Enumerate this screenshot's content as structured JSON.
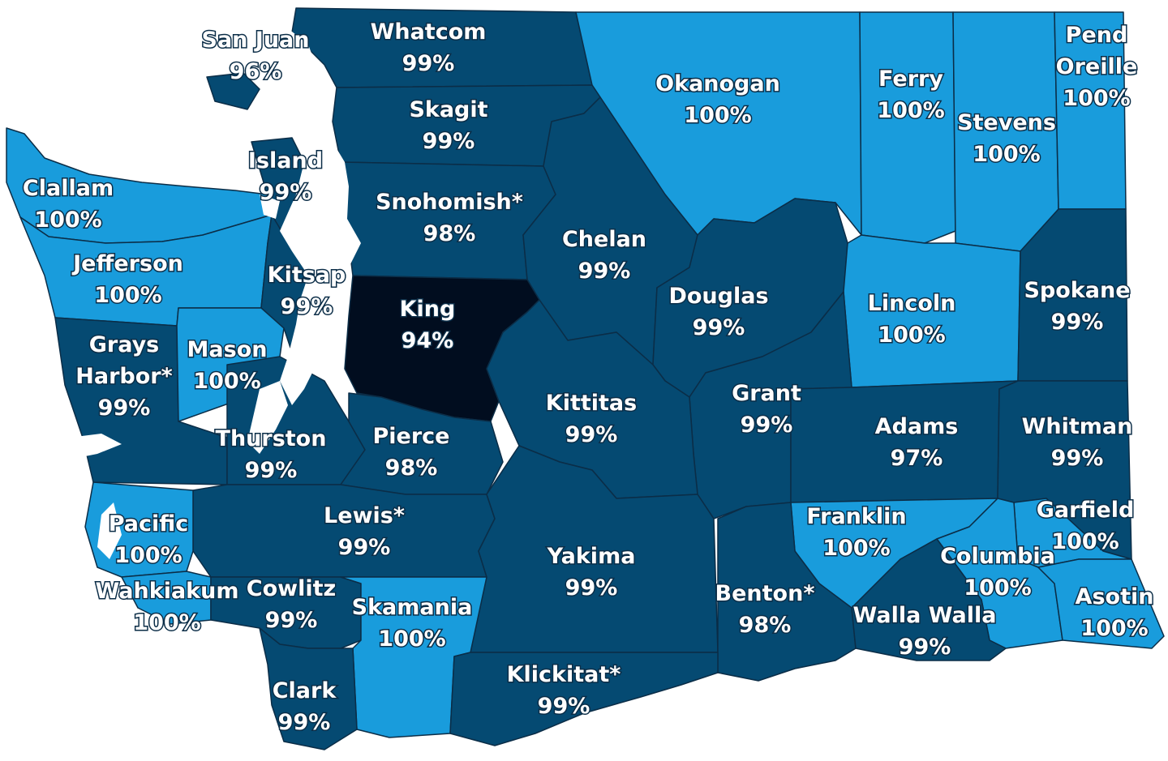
{
  "colors": {
    "light": "#199cdc",
    "dark": "#054a72",
    "darkest": "#010d1f",
    "border": "#0b2d47"
  },
  "counties": {
    "san_juan": {
      "lines": [
        "San Juan",
        "96%"
      ],
      "shade": "dark"
    },
    "whatcom": {
      "lines": [
        "Whatcom",
        "99%"
      ],
      "shade": "dark"
    },
    "okanogan": {
      "lines": [
        "Okanogan",
        "100%"
      ],
      "shade": "light"
    },
    "ferry": {
      "lines": [
        "Ferry",
        "100%"
      ],
      "shade": "light"
    },
    "stevens": {
      "lines": [
        "Stevens",
        "100%"
      ],
      "shade": "light"
    },
    "pend_oreille": {
      "lines": [
        "Pend",
        "Oreille",
        "100%"
      ],
      "shade": "light"
    },
    "skagit": {
      "lines": [
        "Skagit",
        "99%"
      ],
      "shade": "dark"
    },
    "island": {
      "lines": [
        "Island",
        "99%"
      ],
      "shade": "dark"
    },
    "clallam": {
      "lines": [
        "Clallam",
        "100%"
      ],
      "shade": "light"
    },
    "snohomish": {
      "lines": [
        "Snohomish*",
        "98%"
      ],
      "shade": "dark"
    },
    "chelan": {
      "lines": [
        "Chelan",
        "99%"
      ],
      "shade": "dark"
    },
    "jefferson": {
      "lines": [
        "Jefferson",
        "100%"
      ],
      "shade": "light"
    },
    "kitsap": {
      "lines": [
        "Kitsap",
        "99%"
      ],
      "shade": "dark"
    },
    "king": {
      "lines": [
        "King",
        "94%"
      ],
      "shade": "darkest"
    },
    "douglas": {
      "lines": [
        "Douglas",
        "99%"
      ],
      "shade": "dark"
    },
    "lincoln": {
      "lines": [
        "Lincoln",
        "100%"
      ],
      "shade": "light"
    },
    "spokane": {
      "lines": [
        "Spokane",
        "99%"
      ],
      "shade": "dark"
    },
    "grays_harbor": {
      "lines": [
        "Grays",
        "Harbor*",
        "99%"
      ],
      "shade": "dark"
    },
    "mason": {
      "lines": [
        "Mason",
        "100%"
      ],
      "shade": "light"
    },
    "grant": {
      "lines": [
        "Grant",
        "99%"
      ],
      "shade": "dark"
    },
    "kittitas": {
      "lines": [
        "Kittitas",
        "99%"
      ],
      "shade": "dark"
    },
    "adams": {
      "lines": [
        "Adams",
        "97%"
      ],
      "shade": "dark"
    },
    "whitman": {
      "lines": [
        "Whitman",
        "99%"
      ],
      "shade": "dark"
    },
    "thurston": {
      "lines": [
        "Thurston",
        "99%"
      ],
      "shade": "dark"
    },
    "pierce": {
      "lines": [
        "Pierce",
        "98%"
      ],
      "shade": "dark"
    },
    "lewis": {
      "lines": [
        "Lewis*",
        "99%"
      ],
      "shade": "dark"
    },
    "pacific": {
      "lines": [
        "Pacific",
        "100%"
      ],
      "shade": "light"
    },
    "franklin": {
      "lines": [
        "Franklin",
        "100%"
      ],
      "shade": "light"
    },
    "garfield": {
      "lines": [
        "Garfield",
        "100%"
      ],
      "shade": "light"
    },
    "yakima": {
      "lines": [
        "Yakima",
        "99%"
      ],
      "shade": "dark"
    },
    "columbia": {
      "lines": [
        "Columbia",
        "100%"
      ],
      "shade": "light"
    },
    "wahkiakum": {
      "lines": [
        "Wahkiakum",
        "100%"
      ],
      "shade": "light"
    },
    "cowlitz": {
      "lines": [
        "Cowlitz",
        "99%"
      ],
      "shade": "dark"
    },
    "skamania": {
      "lines": [
        "Skamania",
        "100%"
      ],
      "shade": "light"
    },
    "benton": {
      "lines": [
        "Benton*",
        "98%"
      ],
      "shade": "dark"
    },
    "asotin": {
      "lines": [
        "Asotin",
        "100%"
      ],
      "shade": "light"
    },
    "walla_walla": {
      "lines": [
        "Walla Walla",
        "99%"
      ],
      "shade": "dark"
    },
    "klickitat": {
      "lines": [
        "Klickitat*",
        "99%"
      ],
      "shade": "dark"
    },
    "clark": {
      "lines": [
        "Clark",
        "99%"
      ],
      "shade": "dark"
    }
  }
}
